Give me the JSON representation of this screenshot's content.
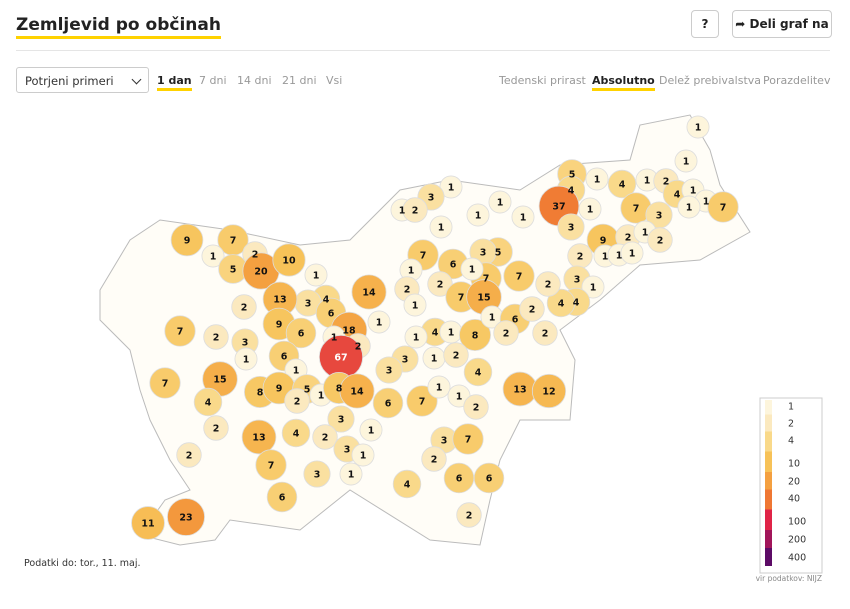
{
  "header": {
    "title": "Zemljevid po občinah",
    "help": "?",
    "share": "Deli graf na"
  },
  "controls": {
    "dropdown": "Potrjeni primeri",
    "periods": [
      "1 dan",
      "7 dni",
      "14 dni",
      "21 dni",
      "Vsi"
    ],
    "views": [
      "Tedenski prirast",
      "Absolutno",
      "Delež prebivalstva",
      "Porazdelitev"
    ]
  },
  "map": {
    "labels": [
      1,
      1,
      5,
      1,
      4,
      4,
      1,
      2,
      4,
      1,
      1,
      7,
      1,
      7,
      3,
      37,
      1,
      3,
      9,
      2,
      1,
      2,
      2,
      1,
      1,
      1,
      3,
      1,
      4,
      4,
      2,
      1,
      3,
      1,
      2,
      1,
      1,
      1,
      1,
      9,
      7,
      1,
      2,
      5,
      20,
      10,
      1,
      7,
      5,
      3,
      7,
      6,
      1,
      7,
      1,
      2,
      7,
      15,
      2,
      1,
      4,
      3,
      13,
      14,
      6,
      2,
      9,
      6,
      18,
      1,
      1,
      4,
      1,
      1,
      8,
      1,
      6,
      2,
      2,
      2,
      7,
      2,
      3,
      1,
      6,
      2,
      67,
      3,
      3,
      1,
      2,
      4,
      7,
      15,
      1,
      8,
      9,
      5,
      1,
      8,
      14,
      2,
      4,
      6,
      7,
      1,
      1,
      2,
      13,
      12,
      3,
      1,
      2,
      13,
      4,
      2,
      3,
      1,
      3,
      7,
      2,
      2,
      7,
      3,
      1,
      4,
      6,
      6,
      6,
      2,
      23,
      11
    ]
  },
  "legend": {
    "stops": [
      1,
      2,
      4,
      10,
      20,
      40,
      100,
      200,
      400
    ],
    "source": "vir podatkov: NIJZ"
  },
  "footer": "Podatki do: tor., 11. maj."
}
